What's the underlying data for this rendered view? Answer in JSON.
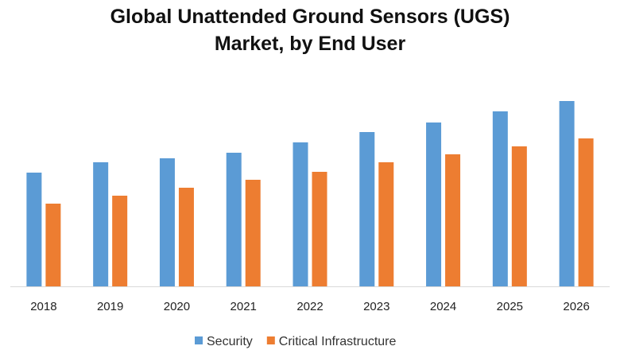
{
  "chart_data": {
    "type": "bar",
    "title_line1": "Global Unattended Ground Sensors (UGS)",
    "title_line2": "Market, by End User",
    "xlabel": "",
    "ylabel": "",
    "categories": [
      "2018",
      "2019",
      "2020",
      "2021",
      "2022",
      "2023",
      "2024",
      "2025",
      "2026"
    ],
    "series": [
      {
        "name": "Security",
        "color": "#5b9bd5",
        "values": [
          143,
          156,
          161,
          168,
          181,
          194,
          206,
          220,
          233
        ]
      },
      {
        "name": "Critical Infrastructure",
        "color": "#ed7d31",
        "values": [
          104,
          114,
          124,
          134,
          144,
          156,
          166,
          176,
          186
        ]
      }
    ],
    "ylim": [
      0,
      250
    ],
    "y_axis_visible": false,
    "grid": false,
    "legend_position": "bottom"
  }
}
